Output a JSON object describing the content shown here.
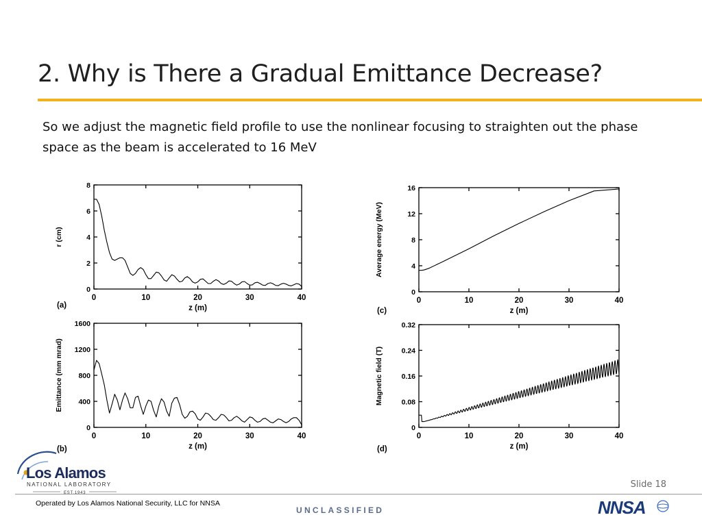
{
  "slide": {
    "title": "2. Why is There a Gradual Emittance Decrease?",
    "body": "So we adjust the magnetic field profile to use the nonlinear focusing to straighten out the phase space as the beam is accelerated to 16 MeV",
    "number": "Slide 18",
    "accent_color": "#f2b21e"
  },
  "footer": {
    "operated_by": "Operated by Los Alamos National Security, LLC for NNSA",
    "classification": "UNCLASSIFIED",
    "logo_left": {
      "name": "Los Alamos",
      "subtitle": "NATIONAL LABORATORY",
      "est": "EST.1943"
    },
    "logo_right": {
      "name": "NNSA"
    }
  },
  "chart_data": [
    {
      "id": "a",
      "type": "line",
      "panel_label": "(a)",
      "xlabel": "z (m)",
      "ylabel": "r (cm)",
      "xlim": [
        0,
        40
      ],
      "ylim": [
        0,
        8
      ],
      "xticks": [
        0,
        10,
        20,
        30,
        40
      ],
      "yticks": [
        0,
        2,
        4,
        6,
        8
      ],
      "series": [
        {
          "x": [
            0,
            0.5,
            1,
            1.5,
            2,
            2.5,
            3,
            3.5,
            4,
            4.5,
            5,
            5.5,
            6,
            6.5,
            7,
            7.5,
            8,
            8.5,
            9,
            9.5,
            10,
            10.5,
            11,
            11.5,
            12,
            12.5,
            13,
            13.5,
            14,
            14.5,
            15,
            15.5,
            16,
            16.5,
            17,
            17.5,
            18,
            18.5,
            19,
            19.5,
            20,
            20.5,
            21,
            21.5,
            22,
            22.5,
            23,
            23.5,
            24,
            24.5,
            25,
            25.5,
            26,
            26.5,
            27,
            27.5,
            28,
            28.5,
            29,
            29.5,
            30,
            30.5,
            31,
            31.5,
            32,
            32.5,
            33,
            33.5,
            34,
            34.5,
            35,
            35.5,
            36,
            36.5,
            37,
            37.5,
            38,
            38.5,
            39,
            39.5,
            40
          ],
          "y": [
            6.9,
            6.9,
            6.5,
            5.6,
            4.5,
            3.6,
            2.8,
            2.3,
            2.2,
            2.3,
            2.4,
            2.4,
            2.2,
            1.7,
            1.2,
            1.05,
            1.2,
            1.5,
            1.65,
            1.5,
            1.1,
            0.8,
            0.8,
            1.05,
            1.3,
            1.25,
            1.0,
            0.7,
            0.6,
            0.85,
            1.1,
            1.0,
            0.75,
            0.55,
            0.6,
            0.85,
            0.95,
            0.8,
            0.55,
            0.45,
            0.55,
            0.75,
            0.78,
            0.6,
            0.42,
            0.42,
            0.6,
            0.72,
            0.62,
            0.42,
            0.35,
            0.45,
            0.62,
            0.6,
            0.42,
            0.3,
            0.38,
            0.55,
            0.58,
            0.42,
            0.3,
            0.32,
            0.48,
            0.52,
            0.42,
            0.3,
            0.28,
            0.42,
            0.48,
            0.4,
            0.28,
            0.26,
            0.38,
            0.44,
            0.38,
            0.28,
            0.24,
            0.33,
            0.42,
            0.38,
            0.2
          ]
        }
      ]
    },
    {
      "id": "b",
      "type": "line",
      "panel_label": "(b)",
      "xlabel": "z (m)",
      "ylabel": "Emittance (mm mrad)",
      "xlim": [
        0,
        40
      ],
      "ylim": [
        0,
        1600
      ],
      "xticks": [
        0,
        10,
        20,
        30,
        40
      ],
      "yticks": [
        0,
        400,
        800,
        1200,
        1600
      ],
      "series": [
        {
          "x": [
            0,
            0.5,
            1,
            1.5,
            2,
            2.5,
            3,
            3.5,
            4,
            4.5,
            5,
            5.5,
            6,
            6.5,
            7,
            7.5,
            8,
            8.5,
            9,
            9.5,
            10,
            10.5,
            11,
            11.5,
            12,
            12.5,
            13,
            13.5,
            14,
            14.5,
            15,
            15.5,
            16,
            16.5,
            17,
            17.5,
            18,
            18.5,
            19,
            19.5,
            20,
            20.5,
            21,
            21.5,
            22,
            22.5,
            23,
            23.5,
            24,
            24.5,
            25,
            25.5,
            26,
            26.5,
            27,
            27.5,
            28,
            28.5,
            29,
            29.5,
            30,
            30.5,
            31,
            31.5,
            32,
            32.5,
            33,
            33.5,
            34,
            34.5,
            35,
            35.5,
            36,
            36.5,
            37,
            37.5,
            38,
            38.5,
            39,
            39.5,
            40
          ],
          "y": [
            880,
            1030,
            980,
            820,
            650,
            420,
            220,
            360,
            510,
            420,
            270,
            420,
            530,
            440,
            300,
            300,
            460,
            480,
            330,
            200,
            330,
            420,
            400,
            260,
            160,
            330,
            440,
            390,
            250,
            170,
            370,
            450,
            460,
            350,
            200,
            140,
            170,
            240,
            250,
            210,
            130,
            110,
            160,
            220,
            210,
            170,
            120,
            110,
            150,
            200,
            190,
            150,
            100,
            110,
            150,
            170,
            140,
            100,
            80,
            120,
            160,
            150,
            110,
            80,
            90,
            130,
            140,
            110,
            80,
            70,
            100,
            130,
            120,
            90,
            70,
            90,
            130,
            150,
            150,
            110,
            40
          ]
        }
      ]
    },
    {
      "id": "c",
      "type": "line",
      "panel_label": "(c)",
      "xlabel": "z (m)",
      "ylabel": "Average energy (MeV)",
      "xlim": [
        0,
        40
      ],
      "ylim": [
        0,
        16
      ],
      "xticks": [
        0,
        10,
        20,
        30,
        40
      ],
      "yticks": [
        0,
        4,
        8,
        12,
        16
      ],
      "series": [
        {
          "x": [
            0,
            0.5,
            1,
            2,
            5,
            10,
            15,
            20,
            25,
            30,
            35,
            40
          ],
          "y": [
            3.3,
            3.3,
            3.35,
            3.6,
            4.7,
            6.6,
            8.6,
            10.5,
            12.3,
            14.0,
            15.5,
            15.8
          ]
        }
      ]
    },
    {
      "id": "d",
      "type": "line",
      "panel_label": "(d)",
      "xlabel": "z (m)",
      "ylabel": "Magnetic field (T)",
      "xlim": [
        0,
        40
      ],
      "ylim": [
        0,
        0.32
      ],
      "xticks": [
        0,
        10,
        20,
        30,
        40
      ],
      "yticks": [
        0,
        0.08,
        0.16,
        0.24,
        0.32
      ],
      "series": [
        {
          "x": [
            0,
            0.5,
            0.6,
            1,
            2,
            40
          ],
          "y": [
            0.038,
            0.038,
            0.018,
            0.018,
            0.022,
            0.19
          ],
          "oscillation_amplitude": [
            0,
            0.022
          ]
        }
      ]
    }
  ]
}
